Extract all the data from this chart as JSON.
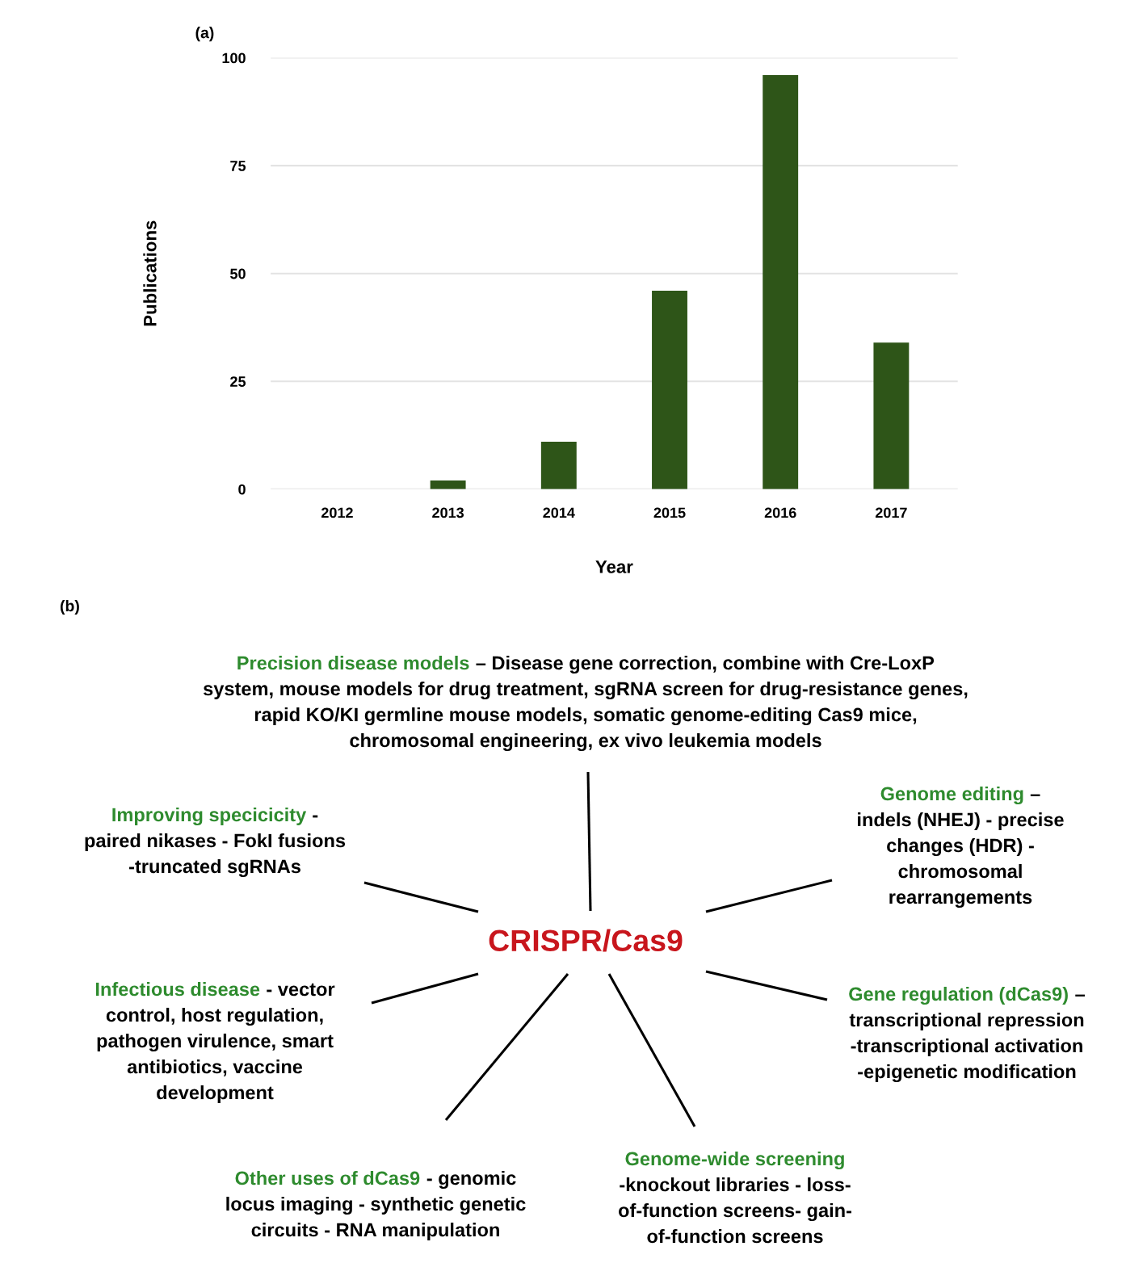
{
  "chart_data": [
    {
      "type": "bar",
      "title": "(a)",
      "xlabel": "Year",
      "ylabel": "Publications",
      "categories": [
        "2012",
        "2013",
        "2014",
        "2015",
        "2016",
        "2017"
      ],
      "values": [
        0,
        2,
        11,
        46,
        96,
        34
      ],
      "color": "#2e5518",
      "ylim": [
        0,
        100
      ],
      "yticks": [
        0,
        25,
        50,
        75,
        100
      ],
      "grid": "y"
    },
    {
      "type": "other",
      "title": "(b)",
      "annotations": [
        "CRISPR/Cas9",
        "Precision disease models",
        "– Disease gene correction, combine with Cre-LoxP\nsystem, mouse models for drug treatment, sgRNA screen for drug-resistance genes,\nrapid KO/KI germline mouse models, somatic genome-editing Cas9 mice,\nchromosomal engineering, ex vivo leukemia models",
        "Improving specicicity",
        "-\npaired nikases - FokI fusions\n-truncated sgRNAs",
        "Genome editing",
        "–\nindels (NHEJ) - precise\nchanges (HDR) -\nchromosomal\nrearrangements",
        "Infectious disease",
        "- vector\ncontrol, host regulation,\npathogen virulence, smart\nantibiotics, vaccine\ndevelopment",
        "Gene regulation (dCas9)",
        "–\ntranscriptional repression\n-transcriptional activation\n-epigenetic modification",
        "Other uses of dCas9",
        "- genomic\nlocus imaging - synthetic genetic\ncircuits - RNA manipulation",
        "Genome-wide screening",
        "\n-knockout libraries - loss-\nof-function screens- gain-\nof-function screens"
      ]
    }
  ]
}
